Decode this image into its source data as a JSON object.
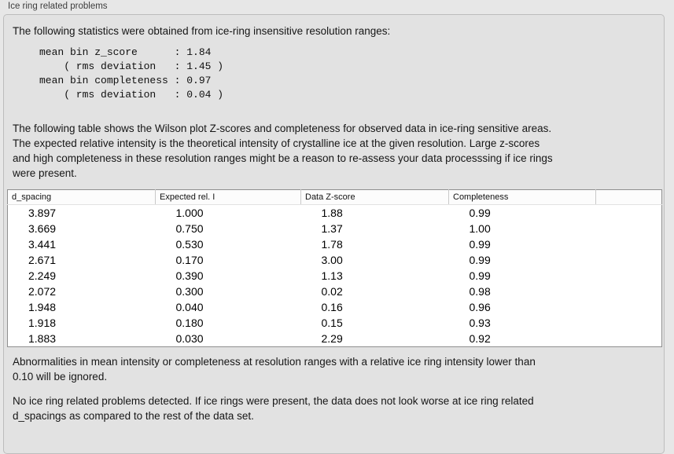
{
  "section": {
    "title": "Ice ring related problems"
  },
  "panel": {
    "intro": "The following statistics were obtained from ice-ring insensitive resolution ranges:",
    "stats_block": "mean bin z_score      : 1.84\n    ( rms deviation   : 1.45 )\nmean bin completeness : 0.97\n    ( rms deviation   : 0.04 )",
    "table_description": "The following table shows the Wilson plot Z-scores and completeness for observed data in ice-ring sensitive areas.\nThe expected relative intensity is the theoretical intensity of crystalline ice at the given resolution. Large z-scores\nand high completeness in these resolution ranges might be a reason to re-assess your data processsing if ice rings\nwere present.",
    "table": {
      "columns": [
        "d_spacing",
        "Expected rel. I",
        "Data Z-score",
        "Completeness"
      ],
      "rows": [
        [
          "3.897",
          "1.000",
          "1.88",
          "0.99"
        ],
        [
          "3.669",
          "0.750",
          "1.37",
          "1.00"
        ],
        [
          "3.441",
          "0.530",
          "1.78",
          "0.99"
        ],
        [
          "2.671",
          "0.170",
          "3.00",
          "0.99"
        ],
        [
          "2.249",
          "0.390",
          "1.13",
          "0.99"
        ],
        [
          "2.072",
          "0.300",
          "0.02",
          "0.98"
        ],
        [
          "1.948",
          "0.040",
          "0.16",
          "0.96"
        ],
        [
          "1.918",
          "0.180",
          "0.15",
          "0.93"
        ],
        [
          "1.883",
          "0.030",
          "2.29",
          "0.92"
        ]
      ]
    },
    "ignore_note": "Abnormalities in mean intensity or completeness at resolution ranges with a relative ice ring intensity lower than\n0.10 will be ignored.",
    "conclusion": "No ice ring related problems detected. If ice rings were present, the data does not look worse at ice ring related\nd_spacings as compared to the rest of the data set."
  },
  "colors": {
    "page_background": "#e7e7e7",
    "panel_background": "#e2e2e2",
    "panel_border": "#bdbdbd",
    "table_background": "#ffffff",
    "table_border": "#8f8f8f",
    "text": "#161616"
  }
}
